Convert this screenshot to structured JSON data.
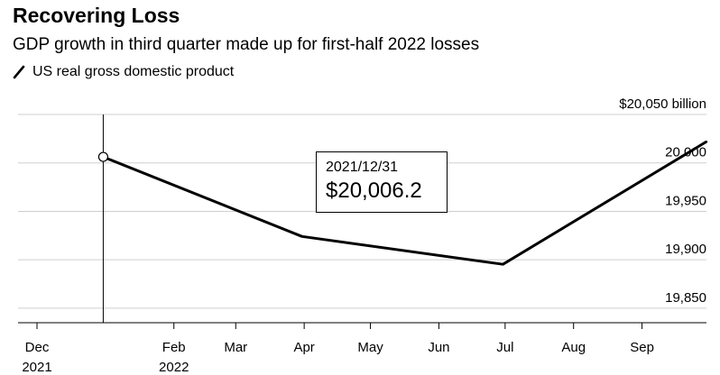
{
  "header": {
    "title": "Recovering Loss",
    "subtitle": "GDP growth in third quarter made up for first-half 2022 losses"
  },
  "legend": {
    "label": "US real gross domestic product",
    "color": "#000000",
    "icon": "diagonal-line-icon"
  },
  "tooltip": {
    "date": "2021/12/31",
    "value": "$20,006.2"
  },
  "chart_data": {
    "type": "line",
    "series": [
      {
        "name": "US real gross domestic product",
        "color": "#000000",
        "points": [
          {
            "x": "2021-12-31",
            "y": 20006.2
          },
          {
            "x": "2022-03-31",
            "y": 19924.1
          },
          {
            "x": "2022-06-30",
            "y": 19895.3
          },
          {
            "x": "2022-09-30",
            "y": 20021.7
          }
        ]
      }
    ],
    "highlight_point": {
      "x": "2021-12-31",
      "y": 20006.2
    },
    "x_axis": {
      "range": [
        "2021-12-01",
        "2022-10-01"
      ],
      "ticks": [
        {
          "date": "2021-12-01",
          "label": "Dec",
          "sublabel": "2021"
        },
        {
          "date": "2022-02-01",
          "label": "Feb",
          "sublabel": "2022"
        },
        {
          "date": "2022-03-01",
          "label": "Mar",
          "sublabel": ""
        },
        {
          "date": "2022-04-01",
          "label": "Apr",
          "sublabel": ""
        },
        {
          "date": "2022-05-01",
          "label": "May",
          "sublabel": ""
        },
        {
          "date": "2022-06-01",
          "label": "Jun",
          "sublabel": ""
        },
        {
          "date": "2022-07-01",
          "label": "Jul",
          "sublabel": ""
        },
        {
          "date": "2022-08-01",
          "label": "Aug",
          "sublabel": ""
        },
        {
          "date": "2022-09-01",
          "label": "Sep",
          "sublabel": ""
        }
      ]
    },
    "y_axis": {
      "range": [
        19835,
        20050
      ],
      "position": "right",
      "ticks": [
        {
          "value": 20050,
          "label": "$20,050 billion"
        },
        {
          "value": 20000,
          "label": "20,000"
        },
        {
          "value": 19950,
          "label": "19,950"
        },
        {
          "value": 19900,
          "label": "19,900"
        },
        {
          "value": 19850,
          "label": "19,850"
        }
      ]
    },
    "grid": true
  }
}
